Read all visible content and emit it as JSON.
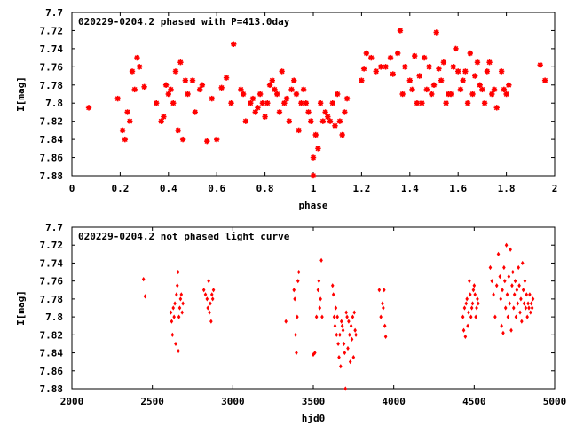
{
  "chart_data": [
    {
      "type": "scatter",
      "title": "020229-0204.2 phased with P=413.0day",
      "xlabel": "phase",
      "ylabel": "I[mag]",
      "xlim": [
        0,
        2
      ],
      "ylim": [
        7.88,
        7.7
      ],
      "y_inverted": true,
      "x_ticks": [
        "0",
        "0.2",
        "0.4",
        "0.6",
        "0.8",
        "1",
        "1.2",
        "1.4",
        "1.6",
        "1.8",
        "2"
      ],
      "y_ticks": [
        "7.7",
        "7.72",
        "7.74",
        "7.76",
        "7.78",
        "7.8",
        "7.82",
        "7.84",
        "7.86",
        "7.88"
      ],
      "grid": false,
      "legend": "none",
      "marker_color": "#ff0000",
      "marker": "star",
      "points": [
        [
          0.07,
          7.805
        ],
        [
          0.19,
          7.795
        ],
        [
          0.21,
          7.83
        ],
        [
          0.22,
          7.84
        ],
        [
          0.23,
          7.81
        ],
        [
          0.24,
          7.82
        ],
        [
          0.25,
          7.765
        ],
        [
          0.26,
          7.785
        ],
        [
          0.27,
          7.75
        ],
        [
          0.28,
          7.76
        ],
        [
          0.3,
          7.782
        ],
        [
          0.35,
          7.8
        ],
        [
          0.37,
          7.82
        ],
        [
          0.38,
          7.815
        ],
        [
          0.39,
          7.78
        ],
        [
          0.4,
          7.79
        ],
        [
          0.41,
          7.785
        ],
        [
          0.42,
          7.8
        ],
        [
          0.43,
          7.765
        ],
        [
          0.44,
          7.83
        ],
        [
          0.45,
          7.755
        ],
        [
          0.46,
          7.84
        ],
        [
          0.47,
          7.775
        ],
        [
          0.48,
          7.79
        ],
        [
          0.5,
          7.775
        ],
        [
          0.51,
          7.81
        ],
        [
          0.53,
          7.785
        ],
        [
          0.54,
          7.78
        ],
        [
          0.56,
          7.842
        ],
        [
          0.58,
          7.795
        ],
        [
          0.6,
          7.84
        ],
        [
          0.62,
          7.783
        ],
        [
          0.64,
          7.772
        ],
        [
          0.66,
          7.8
        ],
        [
          0.67,
          7.735
        ],
        [
          0.7,
          7.785
        ],
        [
          0.71,
          7.79
        ],
        [
          0.72,
          7.82
        ],
        [
          0.74,
          7.8
        ],
        [
          0.75,
          7.795
        ],
        [
          0.76,
          7.81
        ],
        [
          0.77,
          7.805
        ],
        [
          0.78,
          7.79
        ],
        [
          0.79,
          7.8
        ],
        [
          0.8,
          7.815
        ],
        [
          0.81,
          7.8
        ],
        [
          0.82,
          7.78
        ],
        [
          0.83,
          7.775
        ],
        [
          0.84,
          7.785
        ],
        [
          0.85,
          7.79
        ],
        [
          0.86,
          7.81
        ],
        [
          0.87,
          7.765
        ],
        [
          0.88,
          7.8
        ],
        [
          0.89,
          7.795
        ],
        [
          0.9,
          7.82
        ],
        [
          0.91,
          7.785
        ],
        [
          0.92,
          7.775
        ],
        [
          0.93,
          7.79
        ],
        [
          0.94,
          7.83
        ],
        [
          0.95,
          7.8
        ],
        [
          0.96,
          7.785
        ],
        [
          0.97,
          7.8
        ],
        [
          0.98,
          7.81
        ],
        [
          0.99,
          7.82
        ],
        [
          1.0,
          7.86
        ],
        [
          1.0,
          7.88
        ],
        [
          1.01,
          7.835
        ],
        [
          1.02,
          7.85
        ],
        [
          1.03,
          7.8
        ],
        [
          1.04,
          7.82
        ],
        [
          1.05,
          7.81
        ],
        [
          1.06,
          7.815
        ],
        [
          1.07,
          7.82
        ],
        [
          1.08,
          7.8
        ],
        [
          1.09,
          7.825
        ],
        [
          1.1,
          7.79
        ],
        [
          1.11,
          7.82
        ],
        [
          1.12,
          7.835
        ],
        [
          1.13,
          7.81
        ],
        [
          1.14,
          7.795
        ],
        [
          1.2,
          7.775
        ],
        [
          1.21,
          7.762
        ],
        [
          1.22,
          7.745
        ],
        [
          1.24,
          7.75
        ],
        [
          1.26,
          7.765
        ],
        [
          1.28,
          7.76
        ],
        [
          1.3,
          7.76
        ],
        [
          1.32,
          7.75
        ],
        [
          1.33,
          7.768
        ],
        [
          1.35,
          7.745
        ],
        [
          1.36,
          7.72
        ],
        [
          1.37,
          7.79
        ],
        [
          1.38,
          7.76
        ],
        [
          1.4,
          7.775
        ],
        [
          1.41,
          7.785
        ],
        [
          1.42,
          7.748
        ],
        [
          1.43,
          7.8
        ],
        [
          1.44,
          7.77
        ],
        [
          1.45,
          7.8
        ],
        [
          1.46,
          7.75
        ],
        [
          1.47,
          7.785
        ],
        [
          1.48,
          7.76
        ],
        [
          1.49,
          7.79
        ],
        [
          1.5,
          7.78
        ],
        [
          1.51,
          7.722
        ],
        [
          1.52,
          7.762
        ],
        [
          1.53,
          7.775
        ],
        [
          1.54,
          7.755
        ],
        [
          1.55,
          7.8
        ],
        [
          1.56,
          7.79
        ],
        [
          1.57,
          7.79
        ],
        [
          1.58,
          7.76
        ],
        [
          1.59,
          7.74
        ],
        [
          1.6,
          7.765
        ],
        [
          1.61,
          7.785
        ],
        [
          1.62,
          7.775
        ],
        [
          1.63,
          7.765
        ],
        [
          1.64,
          7.8
        ],
        [
          1.65,
          7.745
        ],
        [
          1.66,
          7.79
        ],
        [
          1.67,
          7.77
        ],
        [
          1.68,
          7.755
        ],
        [
          1.69,
          7.78
        ],
        [
          1.7,
          7.785
        ],
        [
          1.71,
          7.8
        ],
        [
          1.72,
          7.765
        ],
        [
          1.73,
          7.755
        ],
        [
          1.74,
          7.79
        ],
        [
          1.75,
          7.785
        ],
        [
          1.76,
          7.805
        ],
        [
          1.78,
          7.765
        ],
        [
          1.79,
          7.785
        ],
        [
          1.8,
          7.79
        ],
        [
          1.81,
          7.78
        ],
        [
          1.94,
          7.758
        ],
        [
          1.96,
          7.775
        ]
      ]
    },
    {
      "type": "scatter",
      "title": "020229-0204.2 not phased light curve",
      "xlabel": "hjd0",
      "ylabel": "I[mag]",
      "xlim": [
        2000,
        5000
      ],
      "ylim": [
        7.88,
        7.7
      ],
      "y_inverted": true,
      "x_ticks": [
        "2000",
        "2500",
        "3000",
        "3500",
        "4000",
        "4500",
        "5000"
      ],
      "y_ticks": [
        "7.7",
        "7.72",
        "7.74",
        "7.76",
        "7.78",
        "7.8",
        "7.82",
        "7.84",
        "7.86",
        "7.88"
      ],
      "grid": false,
      "legend": "none",
      "marker_color": "#ff0000",
      "marker": "diamond",
      "points": [
        [
          2445,
          7.758
        ],
        [
          2455,
          7.777
        ],
        [
          2615,
          7.795
        ],
        [
          2620,
          7.805
        ],
        [
          2625,
          7.82
        ],
        [
          2630,
          7.79
        ],
        [
          2635,
          7.8
        ],
        [
          2640,
          7.785
        ],
        [
          2645,
          7.83
        ],
        [
          2650,
          7.775
        ],
        [
          2655,
          7.765
        ],
        [
          2660,
          7.75
        ],
        [
          2662,
          7.838
        ],
        [
          2665,
          7.8
        ],
        [
          2670,
          7.79
        ],
        [
          2675,
          7.78
        ],
        [
          2680,
          7.775
        ],
        [
          2685,
          7.795
        ],
        [
          2690,
          7.785
        ],
        [
          2820,
          7.77
        ],
        [
          2830,
          7.775
        ],
        [
          2840,
          7.78
        ],
        [
          2845,
          7.79
        ],
        [
          2850,
          7.76
        ],
        [
          2855,
          7.795
        ],
        [
          2860,
          7.785
        ],
        [
          2865,
          7.805
        ],
        [
          2870,
          7.775
        ],
        [
          2875,
          7.78
        ],
        [
          2880,
          7.77
        ],
        [
          3330,
          7.805
        ],
        [
          3380,
          7.77
        ],
        [
          3385,
          7.78
        ],
        [
          3390,
          7.82
        ],
        [
          3395,
          7.84
        ],
        [
          3400,
          7.8
        ],
        [
          3405,
          7.76
        ],
        [
          3410,
          7.75
        ],
        [
          3500,
          7.842
        ],
        [
          3510,
          7.84
        ],
        [
          3520,
          7.8
        ],
        [
          3530,
          7.77
        ],
        [
          3535,
          7.76
        ],
        [
          3540,
          7.79
        ],
        [
          3545,
          7.78
        ],
        [
          3550,
          7.737
        ],
        [
          3555,
          7.8
        ],
        [
          3620,
          7.765
        ],
        [
          3625,
          7.775
        ],
        [
          3630,
          7.8
        ],
        [
          3635,
          7.81
        ],
        [
          3640,
          7.79
        ],
        [
          3645,
          7.82
        ],
        [
          3650,
          7.8
        ],
        [
          3655,
          7.83
        ],
        [
          3660,
          7.845
        ],
        [
          3665,
          7.82
        ],
        [
          3670,
          7.855
        ],
        [
          3675,
          7.805
        ],
        [
          3680,
          7.81
        ],
        [
          3685,
          7.815
        ],
        [
          3690,
          7.83
        ],
        [
          3695,
          7.84
        ],
        [
          3700,
          7.88
        ],
        [
          3705,
          7.795
        ],
        [
          3710,
          7.8
        ],
        [
          3715,
          7.835
        ],
        [
          3720,
          7.805
        ],
        [
          3725,
          7.82
        ],
        [
          3730,
          7.85
        ],
        [
          3735,
          7.81
        ],
        [
          3740,
          7.825
        ],
        [
          3745,
          7.8
        ],
        [
          3750,
          7.845
        ],
        [
          3755,
          7.795
        ],
        [
          3760,
          7.815
        ],
        [
          3765,
          7.82
        ],
        [
          3910,
          7.77
        ],
        [
          3920,
          7.8
        ],
        [
          3930,
          7.785
        ],
        [
          3935,
          7.79
        ],
        [
          3940,
          7.77
        ],
        [
          3945,
          7.81
        ],
        [
          3950,
          7.822
        ],
        [
          4430,
          7.8
        ],
        [
          4435,
          7.815
        ],
        [
          4440,
          7.79
        ],
        [
          4445,
          7.822
        ],
        [
          4450,
          7.785
        ],
        [
          4455,
          7.78
        ],
        [
          4460,
          7.81
        ],
        [
          4465,
          7.795
        ],
        [
          4470,
          7.76
        ],
        [
          4475,
          7.775
        ],
        [
          4480,
          7.8
        ],
        [
          4485,
          7.79
        ],
        [
          4490,
          7.785
        ],
        [
          4495,
          7.77
        ],
        [
          4500,
          7.765
        ],
        [
          4505,
          7.775
        ],
        [
          4510,
          7.8
        ],
        [
          4515,
          7.79
        ],
        [
          4520,
          7.78
        ],
        [
          4525,
          7.785
        ],
        [
          4600,
          7.745
        ],
        [
          4610,
          7.76
        ],
        [
          4620,
          7.775
        ],
        [
          4630,
          7.8
        ],
        [
          4640,
          7.765
        ],
        [
          4650,
          7.73
        ],
        [
          4660,
          7.755
        ],
        [
          4665,
          7.78
        ],
        [
          4670,
          7.81
        ],
        [
          4675,
          7.77
        ],
        [
          4680,
          7.818
        ],
        [
          4685,
          7.745
        ],
        [
          4690,
          7.76
        ],
        [
          4695,
          7.79
        ],
        [
          4700,
          7.72
        ],
        [
          4705,
          7.775
        ],
        [
          4710,
          7.8
        ],
        [
          4715,
          7.755
        ],
        [
          4720,
          7.785
        ],
        [
          4725,
          7.725
        ],
        [
          4730,
          7.815
        ],
        [
          4735,
          7.765
        ],
        [
          4740,
          7.75
        ],
        [
          4745,
          7.79
        ],
        [
          4750,
          7.775
        ],
        [
          4755,
          7.76
        ],
        [
          4760,
          7.8
        ],
        [
          4765,
          7.77
        ],
        [
          4770,
          7.785
        ],
        [
          4775,
          7.745
        ],
        [
          4780,
          7.765
        ],
        [
          4785,
          7.795
        ],
        [
          4790,
          7.78
        ],
        [
          4795,
          7.805
        ],
        [
          4800,
          7.74
        ],
        [
          4805,
          7.77
        ],
        [
          4810,
          7.785
        ],
        [
          4815,
          7.76
        ],
        [
          4820,
          7.79
        ],
        [
          4825,
          7.775
        ],
        [
          4830,
          7.8
        ],
        [
          4835,
          7.785
        ],
        [
          4840,
          7.79
        ],
        [
          4845,
          7.775
        ],
        [
          4850,
          7.795
        ],
        [
          4855,
          7.785
        ],
        [
          4860,
          7.79
        ],
        [
          4865,
          7.78
        ]
      ]
    }
  ]
}
